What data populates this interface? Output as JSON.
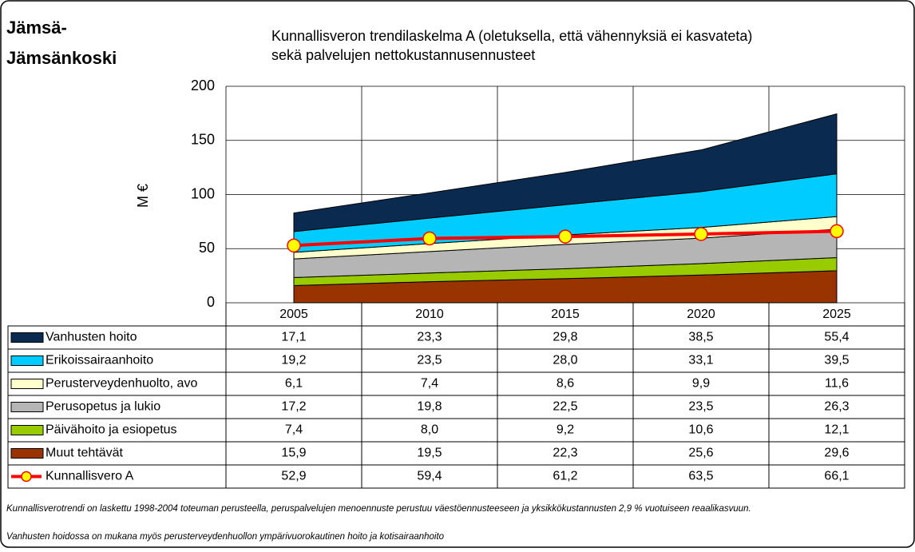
{
  "chart_data": {
    "type": "stacked_area",
    "corner_title": [
      "Jämsä-",
      "Jämsänkoski"
    ],
    "title": [
      "Kunnallisveron trendilaskelma A (oletuksella, että vähennyksiä ei kasvateta)",
      "sekä palvelujen nettokustannusennusteet"
    ],
    "y_label": "M €",
    "categories": [
      "2005",
      "2010",
      "2015",
      "2020",
      "2025"
    ],
    "ylim": [
      0,
      200
    ],
    "yticks": [
      0,
      50,
      100,
      150,
      200
    ],
    "grid": true,
    "series": [
      {
        "name": "Vanhusten hoito",
        "color": "#0b2a4f",
        "values": [
          17.1,
          23.3,
          29.8,
          38.5,
          55.4
        ],
        "value_labels": [
          "17,1",
          "23,3",
          "29,8",
          "38,5",
          "55,4"
        ]
      },
      {
        "name": "Erikoissairaanhoito",
        "color": "#00ccff",
        "values": [
          19.2,
          23.5,
          28.0,
          33.1,
          39.5
        ],
        "value_labels": [
          "19,2",
          "23,5",
          "28,0",
          "33,1",
          "39,5"
        ]
      },
      {
        "name": "Perusterveydenhuolto, avo",
        "color": "#ffffcc",
        "values": [
          6.1,
          7.4,
          8.6,
          9.9,
          11.6
        ],
        "value_labels": [
          "6,1",
          "7,4",
          "8,6",
          "9,9",
          "11,6"
        ]
      },
      {
        "name": "Perusopetus ja lukio",
        "color": "#b5b5b5",
        "values": [
          17.2,
          19.8,
          22.5,
          23.5,
          26.3
        ],
        "value_labels": [
          "17,2",
          "19,8",
          "22,5",
          "23,5",
          "26,3"
        ]
      },
      {
        "name": "Päivähoito ja esiopetus",
        "color": "#99cc00",
        "values": [
          7.4,
          8.0,
          9.2,
          10.6,
          12.1
        ],
        "value_labels": [
          "7,4",
          "8,0",
          "9,2",
          "10,6",
          "12,1"
        ]
      },
      {
        "name": "Muut tehtävät",
        "color": "#993300",
        "values": [
          15.9,
          19.5,
          22.3,
          25.6,
          29.6
        ],
        "value_labels": [
          "15,9",
          "19,5",
          "22,3",
          "25,6",
          "29,6"
        ]
      },
      {
        "name": "Kunnallisvero A",
        "type": "line",
        "color": "#ff0000",
        "marker_color": "#ffff00",
        "values": [
          52.9,
          59.4,
          61.2,
          63.5,
          66.1
        ],
        "value_labels": [
          "52,9",
          "59,4",
          "61,2",
          "63,5",
          "66,1"
        ]
      }
    ],
    "footnotes": [
      "Kunnallisverotrendi on laskettu 1998-2004 toteuman perusteella, peruspalvelujen menoennuste perustuu väestöennusteeseen ja yksikkökustannusten 2,9 % vuotuiseen reaalikasvuun.",
      "Vanhusten hoidossa on mukana myös perusterveydenhuollon ympärivuorokautinen hoito ja kotisairaanhoito"
    ]
  }
}
